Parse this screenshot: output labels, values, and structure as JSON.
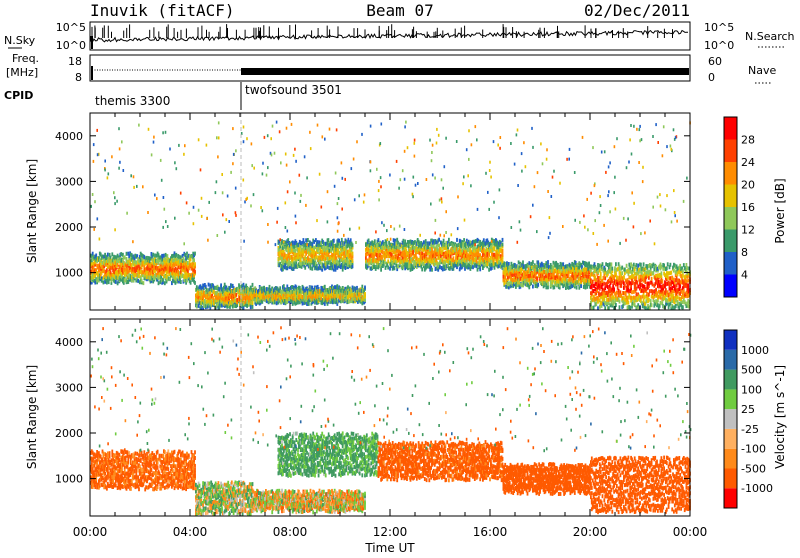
{
  "header": {
    "station": "Inuvik (fitACF)",
    "beam": "Beam 07",
    "date": "02/Dec/2011"
  },
  "status_panels": {
    "nsky_label": "N.Sky",
    "nsearch_label": "N.Search",
    "nsky_ticks": [
      "10^5",
      "10^0"
    ],
    "nsearch_ticks": [
      "10^5",
      "10^0"
    ],
    "freq_label": "Freq.",
    "freq_unit": "[MHz]",
    "freq_ticks": [
      "18",
      "8"
    ],
    "nave_label": "Nave",
    "nave_ticks": [
      "60",
      "0"
    ],
    "cpid_label": "CPID",
    "cpid_modes": [
      {
        "name": "themis 3300",
        "start_hour": 0
      },
      {
        "name": "twofsound 3501",
        "start_hour": 6
      }
    ]
  },
  "axes": {
    "ylabel": "Slant Range [km]",
    "xlabel": "Time UT",
    "x_ticks": [
      "00:00",
      "04:00",
      "08:00",
      "12:00",
      "16:00",
      "20:00",
      "00:00"
    ],
    "y_ticks": [
      "4000",
      "3000",
      "2000",
      "1000"
    ],
    "x_range_hours": [
      0,
      24
    ],
    "y_range_km": [
      180,
      4500
    ]
  },
  "colors": {
    "power": [
      "#0000ff",
      "#2060c8",
      "#3a9a6a",
      "#8fc85a",
      "#e6c200",
      "#ff8c00",
      "#ff4000",
      "#ff0000"
    ],
    "velocity": [
      "#ff0000",
      "#ff5a00",
      "#ff8a1a",
      "#ffb060",
      "#c0c0c0",
      "#70cc40",
      "#409a60",
      "#2a6aa8",
      "#1030c0"
    ]
  },
  "chart_data": [
    {
      "type": "heatmap",
      "panel": "power",
      "colorbar_label": "Power [dB]",
      "colorbar_ticks": [
        "28",
        "24",
        "20",
        "16",
        "12",
        "8",
        "4"
      ],
      "value_range": [
        0,
        30
      ],
      "dense_bands": [
        {
          "t0": 0.0,
          "t1": 4.2,
          "r0": 800,
          "r1": 1400,
          "value": 26
        },
        {
          "t0": 4.2,
          "t1": 6.5,
          "r0": 250,
          "r1": 700,
          "value": 24
        },
        {
          "t0": 6.5,
          "t1": 11.0,
          "r0": 350,
          "r1": 650,
          "value": 22
        },
        {
          "t0": 7.5,
          "t1": 10.5,
          "r0": 1100,
          "r1": 1700,
          "value": 22
        },
        {
          "t0": 11.0,
          "t1": 16.5,
          "r0": 1100,
          "r1": 1700,
          "value": 24
        },
        {
          "t0": 16.5,
          "t1": 20.0,
          "r0": 700,
          "r1": 1200,
          "value": 26
        },
        {
          "t0": 20.0,
          "t1": 24.0,
          "r0": 250,
          "r1": 1200,
          "value": 30
        }
      ]
    },
    {
      "type": "heatmap",
      "panel": "velocity",
      "colorbar_label": "Velocity [m s^-1]",
      "colorbar_ticks": [
        "1000",
        "500",
        "100",
        "25",
        "-25",
        "-100",
        "-500",
        "-1000"
      ],
      "value_range": [
        -1000,
        1000
      ],
      "dense_bands": [
        {
          "t0": 0.0,
          "t1": 4.2,
          "r0": 800,
          "r1": 1600,
          "value": -150
        },
        {
          "t0": 4.2,
          "t1": 6.5,
          "r0": 250,
          "r1": 900,
          "value": 30
        },
        {
          "t0": 6.5,
          "t1": 11.0,
          "r0": 300,
          "r1": 700,
          "value": 0
        },
        {
          "t0": 7.5,
          "t1": 11.5,
          "r0": 1100,
          "r1": 2000,
          "value": 150
        },
        {
          "t0": 11.5,
          "t1": 16.5,
          "r0": 1000,
          "r1": 1800,
          "value": -200
        },
        {
          "t0": 16.5,
          "t1": 20.0,
          "r0": 700,
          "r1": 1300,
          "value": -300
        },
        {
          "t0": 20.0,
          "t1": 24.0,
          "r0": 300,
          "r1": 1500,
          "value": -300
        }
      ]
    }
  ]
}
